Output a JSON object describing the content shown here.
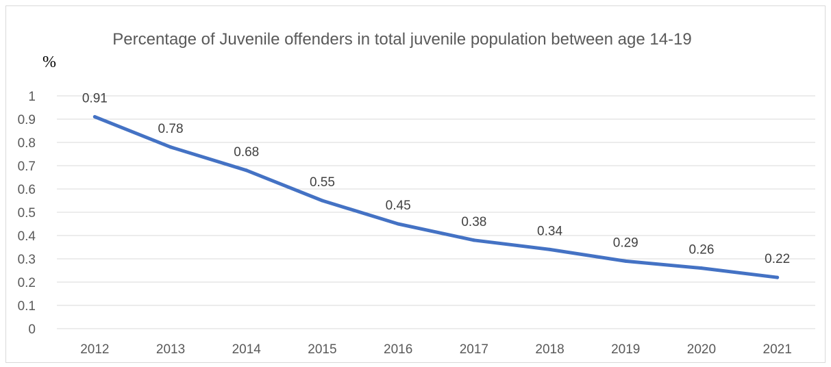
{
  "chart_data": {
    "type": "line",
    "title": "Percentage of Juvenile offenders in total juvenile population between age 14-19",
    "ylabel": "%",
    "categories": [
      "2012",
      "2013",
      "2014",
      "2015",
      "2016",
      "2017",
      "2018",
      "2019",
      "2020",
      "2021"
    ],
    "series": [
      {
        "values": [
          0.91,
          0.78,
          0.68,
          0.55,
          0.45,
          0.38,
          0.34,
          0.29,
          0.26,
          0.22
        ]
      }
    ],
    "data_labels": [
      "0.91",
      "0.78",
      "0.68",
      "0.55",
      "0.45",
      "0.38",
      "0.34",
      "0.29",
      "0.26",
      "0.22"
    ],
    "y_ticks": [
      "0",
      "0.1",
      "0.2",
      "0.3",
      "0.4",
      "0.5",
      "0.6",
      "0.7",
      "0.8",
      "0.9",
      "1"
    ],
    "ylim": [
      0,
      1
    ],
    "grid": true,
    "legend": "none",
    "colors": {
      "line": "#4472c4",
      "grid": "#d9d9d9",
      "text": "#595959"
    }
  }
}
